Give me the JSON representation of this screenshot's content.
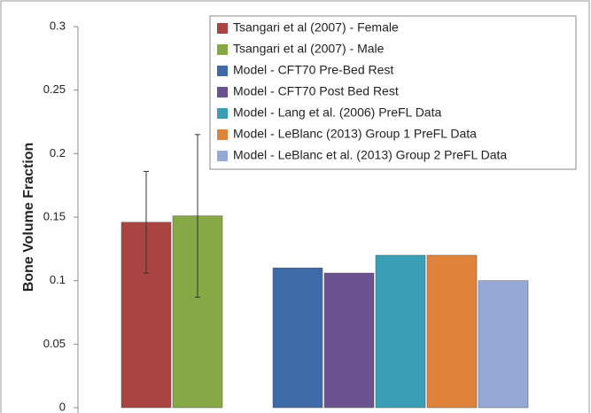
{
  "chart_data": {
    "type": "bar",
    "y_label": "Bone Volume Fraction",
    "ylim": [
      0,
      0.3
    ],
    "yticks": [
      0,
      0.05,
      0.1,
      0.15,
      0.2,
      0.25,
      0.3
    ],
    "grid": false,
    "legend": "top-right",
    "series": [
      {
        "name": "Tsangari et al (2007) - Female",
        "color": "#a94442",
        "values": [
          0.146
        ],
        "errors": [
          0.04
        ]
      },
      {
        "name": "Tsangari et al (2007) - Male",
        "color": "#86a845",
        "values": [
          0.151
        ],
        "errors": [
          0.064
        ]
      },
      {
        "name": "Model - CFT70 Pre-Bed Rest",
        "color": "#3f6aa8",
        "values": [
          0.11
        ]
      },
      {
        "name": "Model - CFT70 Post Bed Rest",
        "color": "#6b5290",
        "values": [
          0.106
        ]
      },
      {
        "name": "Model - Lang et al. (2006) PreFL Data",
        "color": "#3a9fb5",
        "values": [
          0.12
        ]
      },
      {
        "name": "Model - LeBlanc (2013) Group 1 PreFL Data",
        "color": "#e0833a",
        "values": [
          0.12
        ]
      },
      {
        "name": "Model - LeBlanc et al. (2013) Group 2 PreFL Data",
        "color": "#96a9d4",
        "values": [
          0.1
        ]
      }
    ]
  }
}
